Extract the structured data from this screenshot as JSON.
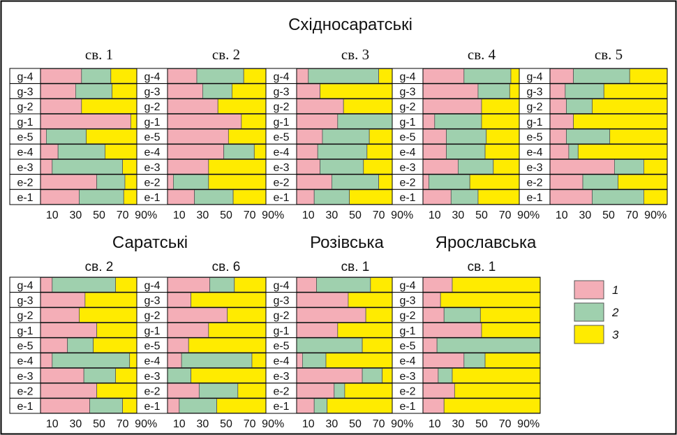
{
  "colors": {
    "c1": "#F4AEB7",
    "c2": "#9FD0AE",
    "c3": "#FFEB00",
    "frame": "#000000",
    "seg_stroke": "#555555"
  },
  "groups": [
    "Східносаратські",
    "Саратські",
    "Розівська",
    "Ярославська"
  ],
  "legend": {
    "items": [
      "1",
      "2",
      "3"
    ]
  },
  "tick_labels": [
    "10",
    "30",
    "50",
    "70",
    "90%"
  ],
  "chart_data": [
    {
      "type": "bar",
      "orientation": "horizontal",
      "stacked": true,
      "group": "Східносаратські",
      "title": "св. 1",
      "categories": [
        "g-4",
        "g-3",
        "g-2",
        "g-1",
        "e-5",
        "e-4",
        "e-3",
        "e-2",
        "e-1"
      ],
      "xlim": [
        0,
        100
      ],
      "xticks": [
        "10",
        "30",
        "50",
        "70",
        "90%"
      ],
      "series": [
        {
          "name": "1",
          "values": [
            35,
            30,
            35,
            77,
            5,
            15,
            10,
            48,
            33
          ]
        },
        {
          "name": "2",
          "values": [
            25,
            31,
            0,
            0,
            34,
            40,
            60,
            24,
            38
          ]
        },
        {
          "name": "3",
          "values": [
            40,
            39,
            65,
            23,
            61,
            45,
            30,
            28,
            29
          ]
        }
      ]
    },
    {
      "type": "bar",
      "orientation": "horizontal",
      "stacked": true,
      "group": "Східносаратські",
      "title": "св. 2",
      "categories": [
        "g-4",
        "g-3",
        "g-2",
        "g-1",
        "e-5",
        "e-4",
        "e-3",
        "e-2",
        "e-1"
      ],
      "xlim": [
        0,
        100
      ],
      "xticks": [
        "10",
        "30",
        "50",
        "70",
        "90%"
      ],
      "series": [
        {
          "name": "1",
          "values": [
            25,
            30,
            43,
            63,
            52,
            48,
            35,
            5,
            23
          ]
        },
        {
          "name": "2",
          "values": [
            40,
            25,
            0,
            0,
            0,
            26,
            0,
            30,
            33
          ]
        },
        {
          "name": "3",
          "values": [
            35,
            45,
            57,
            37,
            48,
            26,
            65,
            65,
            44
          ]
        }
      ]
    },
    {
      "type": "bar",
      "orientation": "horizontal",
      "stacked": true,
      "group": "Східносаратські",
      "title": "св. 3",
      "categories": [
        "g-4",
        "g-3",
        "g-2",
        "g-1",
        "e-5",
        "e-4",
        "e-3",
        "e-2",
        "e-1"
      ],
      "xlim": [
        0,
        100
      ],
      "xticks": [
        "10",
        "30",
        "50",
        "70",
        "90%"
      ],
      "series": [
        {
          "name": "1",
          "values": [
            10,
            20,
            40,
            35,
            22,
            18,
            20,
            30,
            15
          ]
        },
        {
          "name": "2",
          "values": [
            60,
            0,
            0,
            65,
            40,
            42,
            37,
            40,
            30
          ]
        },
        {
          "name": "3",
          "values": [
            30,
            80,
            60,
            0,
            38,
            40,
            43,
            30,
            55
          ]
        }
      ]
    },
    {
      "type": "bar",
      "orientation": "horizontal",
      "stacked": true,
      "group": "Східносаратські",
      "title": "св. 4",
      "categories": [
        "g-4",
        "g-3",
        "g-2",
        "g-1",
        "e-5",
        "e-4",
        "e-3",
        "e-2",
        "e-1"
      ],
      "xlim": [
        0,
        100
      ],
      "xticks": [
        "10",
        "30",
        "50",
        "70",
        "90%"
      ],
      "series": [
        {
          "name": "1",
          "values": [
            35,
            47,
            50,
            10,
            20,
            20,
            30,
            5,
            24
          ]
        },
        {
          "name": "2",
          "values": [
            40,
            27,
            0,
            40,
            34,
            33,
            30,
            35,
            23
          ]
        },
        {
          "name": "3",
          "values": [
            25,
            26,
            50,
            50,
            46,
            47,
            40,
            60,
            53
          ]
        }
      ]
    },
    {
      "type": "bar",
      "orientation": "horizontal",
      "stacked": true,
      "group": "Східносаратські",
      "title": "св. 5",
      "categories": [
        "g-4",
        "g-3",
        "g-2",
        "g-1",
        "e-5",
        "e-4",
        "e-3",
        "e-2",
        "e-1"
      ],
      "xlim": [
        0,
        100
      ],
      "xticks": [
        "10",
        "30",
        "50",
        "70",
        "90%"
      ],
      "series": [
        {
          "name": "1",
          "values": [
            20,
            13,
            14,
            20,
            14,
            16,
            55,
            28,
            36
          ]
        },
        {
          "name": "2",
          "values": [
            48,
            33,
            22,
            0,
            37,
            8,
            25,
            30,
            44
          ]
        },
        {
          "name": "3",
          "values": [
            32,
            54,
            64,
            80,
            49,
            76,
            20,
            42,
            20
          ]
        }
      ]
    },
    {
      "type": "bar",
      "orientation": "horizontal",
      "stacked": true,
      "group": "Саратські",
      "title": "св. 2",
      "categories": [
        "g-4",
        "g-3",
        "g-2",
        "g-1",
        "e-5",
        "e-4",
        "e-3",
        "e-2",
        "e-1"
      ],
      "xlim": [
        0,
        100
      ],
      "xticks": [
        "10",
        "30",
        "50",
        "70",
        "90%"
      ],
      "series": [
        {
          "name": "1",
          "values": [
            10,
            38,
            33,
            48,
            23,
            10,
            37,
            48,
            42
          ]
        },
        {
          "name": "2",
          "values": [
            54,
            0,
            0,
            0,
            22,
            66,
            27,
            0,
            28
          ]
        },
        {
          "name": "3",
          "values": [
            36,
            62,
            67,
            52,
            55,
            24,
            36,
            52,
            30
          ]
        }
      ]
    },
    {
      "type": "bar",
      "orientation": "horizontal",
      "stacked": true,
      "group": "Саратські",
      "title": "св. 6",
      "categories": [
        "g-4",
        "g-3",
        "g-2",
        "g-1",
        "e-5",
        "e-4",
        "e-3",
        "e-2",
        "e-1"
      ],
      "xlim": [
        0,
        100
      ],
      "xticks": [
        "10",
        "30",
        "50",
        "70",
        "90%"
      ],
      "series": [
        {
          "name": "1",
          "values": [
            36,
            20,
            51,
            35,
            18,
            12,
            0,
            27,
            10
          ]
        },
        {
          "name": "2",
          "values": [
            21,
            0,
            0,
            0,
            0,
            60,
            20,
            33,
            32
          ]
        },
        {
          "name": "3",
          "values": [
            43,
            80,
            49,
            65,
            82,
            28,
            80,
            40,
            58
          ]
        }
      ]
    },
    {
      "type": "bar",
      "orientation": "horizontal",
      "stacked": true,
      "group": "Розівська",
      "title": "св. 1",
      "categories": [
        "g-4",
        "g-3",
        "g-2",
        "g-1",
        "e-5",
        "e-4",
        "e-3",
        "e-2",
        "e-1"
      ],
      "xlim": [
        0,
        100
      ],
      "xticks": [
        "10",
        "30",
        "50",
        "70",
        "90%"
      ],
      "series": [
        {
          "name": "1",
          "values": [
            17,
            44,
            59,
            35,
            0,
            5,
            56,
            32,
            15
          ]
        },
        {
          "name": "2",
          "values": [
            46,
            0,
            0,
            0,
            56,
            20,
            17,
            9,
            11
          ]
        },
        {
          "name": "3",
          "values": [
            37,
            56,
            41,
            65,
            44,
            75,
            27,
            59,
            74
          ]
        }
      ]
    },
    {
      "type": "bar",
      "orientation": "horizontal",
      "stacked": true,
      "group": "Ярославська",
      "title": "св. 1",
      "categories": [
        "g-4",
        "g-3",
        "g-2",
        "g-1",
        "e-5",
        "e-4",
        "e-3",
        "e-2",
        "e-1"
      ],
      "xlim": [
        0,
        100
      ],
      "xticks": [
        "10",
        "30",
        "50",
        "70",
        "90%"
      ],
      "series": [
        {
          "name": "1",
          "values": [
            25,
            15,
            18,
            50,
            12,
            35,
            13,
            27,
            18
          ]
        },
        {
          "name": "2",
          "values": [
            0,
            0,
            31,
            0,
            88,
            18,
            12,
            0,
            0
          ]
        },
        {
          "name": "3",
          "values": [
            75,
            85,
            51,
            50,
            0,
            47,
            75,
            73,
            82
          ]
        }
      ]
    }
  ]
}
